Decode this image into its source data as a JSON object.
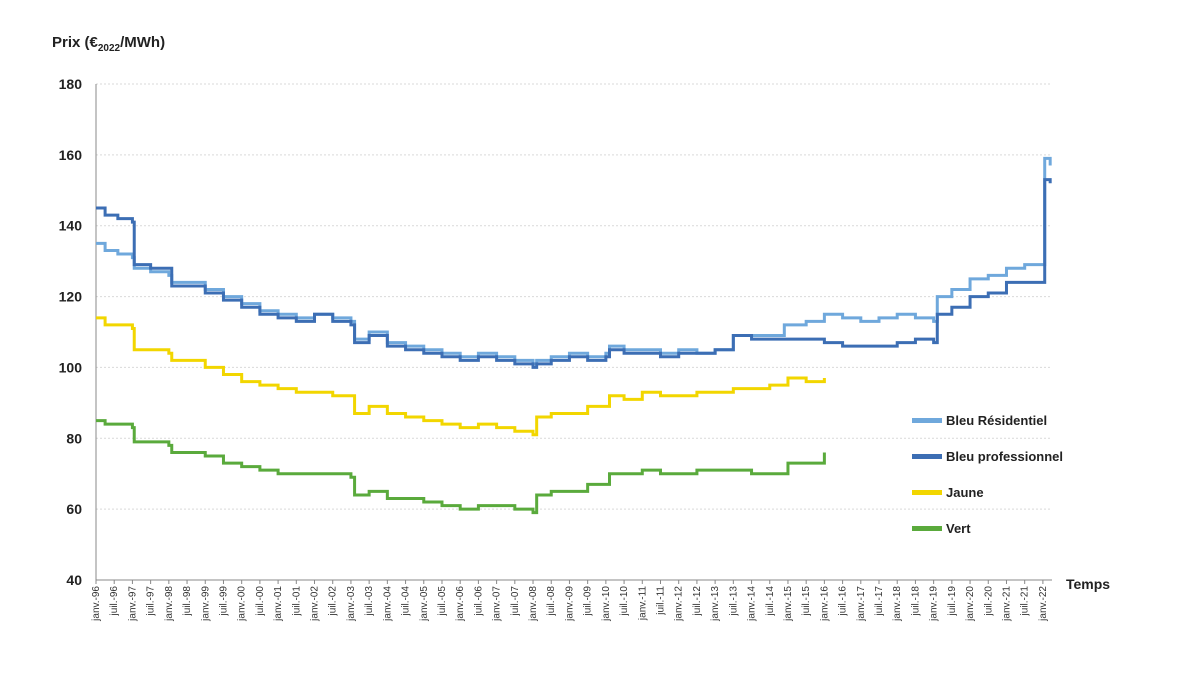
{
  "chart_data": {
    "type": "line",
    "ylabel_main": "Prix (€",
    "ylabel_sub": "2022",
    "ylabel_tail": "/MWh)",
    "xlabel": "Temps",
    "ylim": [
      40,
      180
    ],
    "yticks": [
      40,
      60,
      80,
      100,
      120,
      140,
      160,
      180
    ],
    "grid": true,
    "legend_position": "right",
    "x_tick_labels": [
      "janv.-96",
      "juil.-96",
      "janv.-97",
      "juil.-97",
      "janv.-98",
      "juil.-98",
      "janv.-99",
      "juil.-99",
      "janv.-00",
      "juil.-00",
      "janv.-01",
      "juil.-01",
      "janv.-02",
      "juil.-02",
      "janv.-03",
      "juil.-03",
      "janv.-04",
      "juil.-04",
      "janv.-05",
      "juil.-05",
      "janv.-06",
      "juil.-06",
      "janv.-07",
      "juil.-07",
      "janv.-08",
      "juil.-08",
      "janv.-09",
      "juil.-09",
      "janv.-10",
      "juil.-10",
      "janv.-11",
      "juil.-11",
      "janv.-12",
      "juil.-12",
      "janv.-13",
      "juil.-13",
      "janv.-14",
      "juil.-14",
      "janv.-15",
      "juil.-15",
      "janv.-16",
      "juil.-16",
      "janv.-17",
      "juil.-17",
      "janv.-18",
      "juil.-18",
      "janv.-19",
      "juil.-19",
      "janv.-20",
      "juil.-20",
      "janv.-21",
      "juil.-21",
      "janv.-22"
    ],
    "series": [
      {
        "name": "Bleu Résidentiel",
        "color": "#6fa8dc",
        "points": [
          [
            1996.0,
            135
          ],
          [
            1996.25,
            133
          ],
          [
            1996.6,
            132
          ],
          [
            1997.0,
            131
          ],
          [
            1997.05,
            128
          ],
          [
            1997.5,
            127
          ],
          [
            1998.0,
            126
          ],
          [
            1998.08,
            124
          ],
          [
            1998.6,
            124
          ],
          [
            1999.0,
            122
          ],
          [
            1999.5,
            120
          ],
          [
            2000.0,
            118
          ],
          [
            2000.5,
            116
          ],
          [
            2001.0,
            115
          ],
          [
            2001.5,
            114
          ],
          [
            2002.0,
            115
          ],
          [
            2002.5,
            114
          ],
          [
            2003.0,
            113
          ],
          [
            2003.1,
            108
          ],
          [
            2003.5,
            110
          ],
          [
            2004.0,
            107
          ],
          [
            2004.5,
            106
          ],
          [
            2005.0,
            105
          ],
          [
            2005.5,
            104
          ],
          [
            2006.0,
            103
          ],
          [
            2006.5,
            104
          ],
          [
            2007.0,
            103
          ],
          [
            2007.5,
            102
          ],
          [
            2008.0,
            101
          ],
          [
            2008.1,
            102
          ],
          [
            2008.5,
            103
          ],
          [
            2009.0,
            104
          ],
          [
            2009.5,
            103
          ],
          [
            2010.0,
            104
          ],
          [
            2010.1,
            106
          ],
          [
            2010.5,
            105
          ],
          [
            2011.0,
            105
          ],
          [
            2011.5,
            104
          ],
          [
            2012.0,
            105
          ],
          [
            2012.5,
            104
          ],
          [
            2013.0,
            105
          ],
          [
            2013.5,
            109
          ],
          [
            2014.0,
            109
          ],
          [
            2014.5,
            109
          ],
          [
            2014.9,
            112
          ],
          [
            2015.5,
            113
          ],
          [
            2016.0,
            115
          ],
          [
            2016.5,
            114
          ],
          [
            2017.0,
            113
          ],
          [
            2017.5,
            114
          ],
          [
            2018.0,
            115
          ],
          [
            2018.5,
            114
          ],
          [
            2019.0,
            113
          ],
          [
            2019.1,
            120
          ],
          [
            2019.5,
            122
          ],
          [
            2020.0,
            125
          ],
          [
            2020.5,
            126
          ],
          [
            2021.0,
            128
          ],
          [
            2021.5,
            129
          ],
          [
            2022.0,
            129
          ],
          [
            2022.05,
            159
          ],
          [
            2022.2,
            157
          ]
        ]
      },
      {
        "name": "Bleu professionnel",
        "color": "#3c6eb4",
        "points": [
          [
            1996.0,
            145
          ],
          [
            1996.25,
            143
          ],
          [
            1996.6,
            142
          ],
          [
            1997.0,
            141
          ],
          [
            1997.05,
            129
          ],
          [
            1997.5,
            128
          ],
          [
            1998.0,
            128
          ],
          [
            1998.08,
            123
          ],
          [
            1998.6,
            123
          ],
          [
            1999.0,
            121
          ],
          [
            1999.5,
            119
          ],
          [
            2000.0,
            117
          ],
          [
            2000.5,
            115
          ],
          [
            2001.0,
            114
          ],
          [
            2001.5,
            113
          ],
          [
            2002.0,
            115
          ],
          [
            2002.5,
            113
          ],
          [
            2003.0,
            112
          ],
          [
            2003.1,
            107
          ],
          [
            2003.5,
            109
          ],
          [
            2004.0,
            106
          ],
          [
            2004.5,
            105
          ],
          [
            2005.0,
            104
          ],
          [
            2005.5,
            103
          ],
          [
            2006.0,
            102
          ],
          [
            2006.5,
            103
          ],
          [
            2007.0,
            102
          ],
          [
            2007.5,
            101
          ],
          [
            2008.0,
            100
          ],
          [
            2008.1,
            101
          ],
          [
            2008.5,
            102
          ],
          [
            2009.0,
            103
          ],
          [
            2009.5,
            102
          ],
          [
            2010.0,
            103
          ],
          [
            2010.1,
            105
          ],
          [
            2010.5,
            104
          ],
          [
            2011.0,
            104
          ],
          [
            2011.5,
            103
          ],
          [
            2012.0,
            104
          ],
          [
            2012.5,
            104
          ],
          [
            2013.0,
            105
          ],
          [
            2013.5,
            109
          ],
          [
            2014.0,
            108
          ],
          [
            2014.5,
            108
          ],
          [
            2015.0,
            108
          ],
          [
            2015.5,
            108
          ],
          [
            2016.0,
            107
          ],
          [
            2016.5,
            106
          ],
          [
            2017.0,
            106
          ],
          [
            2017.5,
            106
          ],
          [
            2018.0,
            107
          ],
          [
            2018.5,
            108
          ],
          [
            2019.0,
            107
          ],
          [
            2019.1,
            115
          ],
          [
            2019.5,
            117
          ],
          [
            2020.0,
            120
          ],
          [
            2020.5,
            121
          ],
          [
            2021.0,
            124
          ],
          [
            2021.5,
            124
          ],
          [
            2022.0,
            124
          ],
          [
            2022.05,
            153
          ],
          [
            2022.2,
            152
          ]
        ]
      },
      {
        "name": "Jaune",
        "color": "#f2d600",
        "points": [
          [
            1996.0,
            114
          ],
          [
            1996.25,
            112
          ],
          [
            1996.6,
            112
          ],
          [
            1997.0,
            111
          ],
          [
            1997.05,
            105
          ],
          [
            1997.5,
            105
          ],
          [
            1998.0,
            104
          ],
          [
            1998.08,
            102
          ],
          [
            1998.6,
            102
          ],
          [
            1999.0,
            100
          ],
          [
            1999.5,
            98
          ],
          [
            2000.0,
            96
          ],
          [
            2000.5,
            95
          ],
          [
            2001.0,
            94
          ],
          [
            2001.5,
            93
          ],
          [
            2002.0,
            93
          ],
          [
            2002.5,
            92
          ],
          [
            2003.0,
            92
          ],
          [
            2003.1,
            87
          ],
          [
            2003.5,
            89
          ],
          [
            2004.0,
            87
          ],
          [
            2004.5,
            86
          ],
          [
            2005.0,
            85
          ],
          [
            2005.5,
            84
          ],
          [
            2006.0,
            83
          ],
          [
            2006.5,
            84
          ],
          [
            2007.0,
            83
          ],
          [
            2007.5,
            82
          ],
          [
            2008.0,
            81
          ],
          [
            2008.1,
            86
          ],
          [
            2008.5,
            87
          ],
          [
            2009.0,
            87
          ],
          [
            2009.5,
            89
          ],
          [
            2010.0,
            89
          ],
          [
            2010.1,
            92
          ],
          [
            2010.5,
            91
          ],
          [
            2011.0,
            93
          ],
          [
            2011.5,
            92
          ],
          [
            2012.0,
            92
          ],
          [
            2012.5,
            93
          ],
          [
            2013.0,
            93
          ],
          [
            2013.5,
            94
          ],
          [
            2014.0,
            94
          ],
          [
            2014.5,
            95
          ],
          [
            2015.0,
            97
          ],
          [
            2015.5,
            96
          ],
          [
            2016.0,
            97
          ]
        ]
      },
      {
        "name": "Vert",
        "color": "#5aaa3c",
        "points": [
          [
            1996.0,
            85
          ],
          [
            1996.25,
            84
          ],
          [
            1996.6,
            84
          ],
          [
            1997.0,
            83
          ],
          [
            1997.05,
            79
          ],
          [
            1997.5,
            79
          ],
          [
            1998.0,
            78
          ],
          [
            1998.08,
            76
          ],
          [
            1998.6,
            76
          ],
          [
            1999.0,
            75
          ],
          [
            1999.5,
            73
          ],
          [
            2000.0,
            72
          ],
          [
            2000.5,
            71
          ],
          [
            2001.0,
            70
          ],
          [
            2001.5,
            70
          ],
          [
            2002.0,
            70
          ],
          [
            2002.5,
            70
          ],
          [
            2003.0,
            69
          ],
          [
            2003.1,
            64
          ],
          [
            2003.5,
            65
          ],
          [
            2004.0,
            63
          ],
          [
            2004.5,
            63
          ],
          [
            2005.0,
            62
          ],
          [
            2005.5,
            61
          ],
          [
            2006.0,
            60
          ],
          [
            2006.5,
            61
          ],
          [
            2007.0,
            61
          ],
          [
            2007.5,
            60
          ],
          [
            2008.0,
            59
          ],
          [
            2008.1,
            64
          ],
          [
            2008.5,
            65
          ],
          [
            2009.0,
            65
          ],
          [
            2009.5,
            67
          ],
          [
            2010.0,
            67
          ],
          [
            2010.1,
            70
          ],
          [
            2010.5,
            70
          ],
          [
            2011.0,
            71
          ],
          [
            2011.5,
            70
          ],
          [
            2012.0,
            70
          ],
          [
            2012.5,
            71
          ],
          [
            2013.0,
            71
          ],
          [
            2013.5,
            71
          ],
          [
            2014.0,
            70
          ],
          [
            2014.5,
            70
          ],
          [
            2015.0,
            73
          ],
          [
            2015.5,
            73
          ],
          [
            2016.0,
            76
          ]
        ]
      }
    ]
  }
}
